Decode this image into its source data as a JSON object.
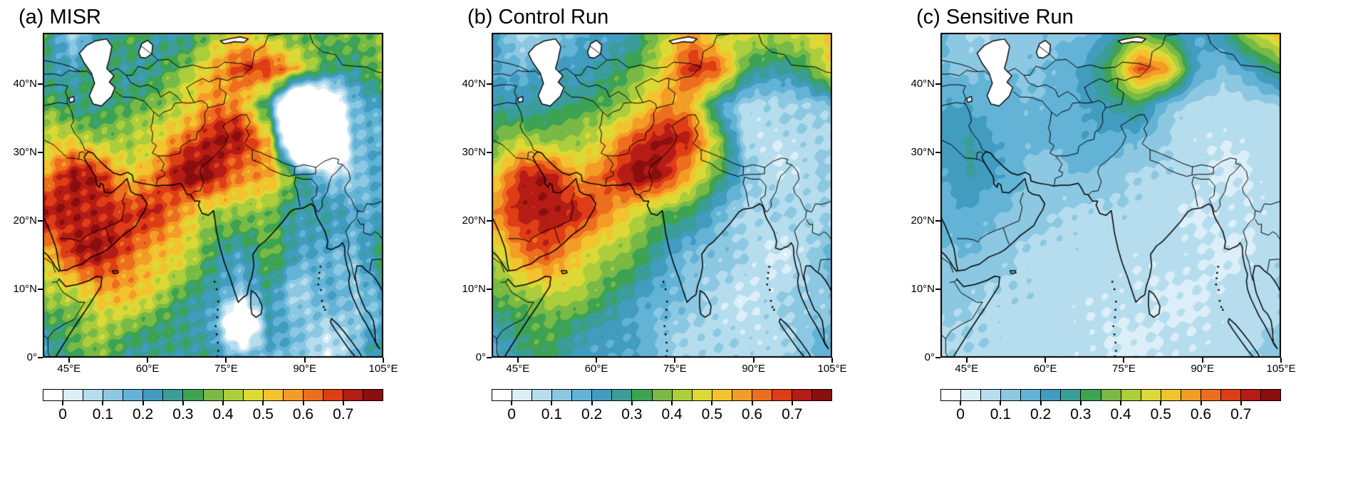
{
  "axes": {
    "lat_ticks": [
      {
        "label": "0°",
        "value": 0
      },
      {
        "label": "10°N",
        "value": 10
      },
      {
        "label": "20°N",
        "value": 20
      },
      {
        "label": "30°N",
        "value": 30
      },
      {
        "label": "40°N",
        "value": 40
      }
    ],
    "lon_ticks": [
      {
        "label": "45°E",
        "value": 45
      },
      {
        "label": "60°E",
        "value": 60
      },
      {
        "label": "75°E",
        "value": 75
      },
      {
        "label": "90°E",
        "value": 90
      },
      {
        "label": "105°E",
        "value": 105
      }
    ]
  },
  "colorbar": {
    "tick_labels": [
      "0",
      "0.1",
      "0.2",
      "0.3",
      "0.4",
      "0.5",
      "0.6",
      "0.7"
    ]
  },
  "chart_data": {
    "type": "heatmap",
    "description": "Three-panel filled-contour maps of aerosol optical depth over Africa, the Middle East and South Asia",
    "geo_extent": {
      "lon_min": 40,
      "lon_max": 105,
      "lat_min": 0,
      "lat_max": 47.5
    },
    "level_step": 0.05,
    "colorbar_tick_values": [
      0,
      0.1,
      0.2,
      0.3,
      0.4,
      0.5,
      0.6,
      0.7
    ],
    "missing_color": "#ffffff",
    "palette": [
      "#dceef7",
      "#b5ddee",
      "#8cc8e2",
      "#63b3d6",
      "#419cc0",
      "#3b9d98",
      "#3da353",
      "#78ba45",
      "#accd3c",
      "#dcd937",
      "#f3c32f",
      "#f39c26",
      "#ec6e1e",
      "#de3d15",
      "#b51c15",
      "#8b0e0f"
    ],
    "grid_lon": [
      42.5,
      47.5,
      52.5,
      57.5,
      62.5,
      67.5,
      72.5,
      77.5,
      82.5,
      87.5,
      92.5,
      97.5,
      102.5
    ],
    "grid_lat": [
      47.5,
      42.2,
      36.9,
      31.7,
      26.4,
      21.1,
      15.8,
      10.6,
      5.3,
      0
    ],
    "noise_amplitude": [
      0.05,
      0.03,
      0.012
    ],
    "panels": [
      {
        "title": "(a) MISR",
        "grid": [
          [
            0.3,
            0.12,
            0.25,
            0.3,
            0.25,
            0.3,
            0.4,
            0.45,
            0.42,
            0.38,
            0.3,
            0.35,
            0.45
          ],
          [
            0.3,
            0.2,
            0.3,
            0.3,
            0.3,
            0.35,
            0.55,
            0.72,
            0.68,
            0.5,
            0.35,
            0.3,
            0.35
          ],
          [
            0.35,
            0.3,
            0.3,
            0.32,
            0.38,
            0.48,
            0.6,
            0.55,
            0.25,
            -0.5,
            -0.2,
            0.15,
            0.25
          ],
          [
            0.45,
            0.5,
            0.42,
            0.4,
            0.48,
            0.65,
            0.75,
            0.74,
            0.55,
            -0.5,
            -0.5,
            0.15,
            0.2
          ],
          [
            0.6,
            0.74,
            0.7,
            0.55,
            0.62,
            0.75,
            0.76,
            0.62,
            0.55,
            0.3,
            0.15,
            0.12,
            0.18
          ],
          [
            0.7,
            0.76,
            0.75,
            0.65,
            0.7,
            0.6,
            0.4,
            0.35,
            0.4,
            0.28,
            0.22,
            0.18,
            0.25
          ],
          [
            0.55,
            0.7,
            0.74,
            0.7,
            0.55,
            0.45,
            0.32,
            0.28,
            0.35,
            0.2,
            0.22,
            0.18,
            0.28
          ],
          [
            0.4,
            0.5,
            0.6,
            0.55,
            0.48,
            0.38,
            0.25,
            0.15,
            0.3,
            0.1,
            0.18,
            0.12,
            0.25
          ],
          [
            0.3,
            0.35,
            0.45,
            0.4,
            0.33,
            0.28,
            0.2,
            -0.3,
            0.25,
            0.15,
            0.1,
            0.12,
            0.2
          ],
          [
            0.25,
            0.3,
            0.35,
            0.3,
            0.28,
            0.22,
            0.28,
            0.2,
            0.15,
            0.1,
            0.08,
            0.15,
            0.28
          ]
        ]
      },
      {
        "title": "(b) Control Run",
        "grid": [
          [
            0.2,
            0.1,
            0.12,
            0.15,
            0.2,
            0.28,
            0.42,
            0.55,
            0.45,
            0.5,
            0.4,
            0.45,
            0.55
          ],
          [
            0.22,
            0.15,
            0.2,
            0.25,
            0.28,
            0.32,
            0.48,
            0.74,
            0.65,
            0.3,
            0.28,
            0.32,
            0.48
          ],
          [
            0.25,
            0.25,
            0.28,
            0.3,
            0.35,
            0.45,
            0.58,
            0.55,
            0.22,
            0.08,
            0.08,
            0.1,
            0.15
          ],
          [
            0.35,
            0.45,
            0.4,
            0.4,
            0.5,
            0.68,
            0.76,
            0.7,
            0.42,
            0.08,
            0.05,
            0.08,
            0.1
          ],
          [
            0.5,
            0.7,
            0.74,
            0.58,
            0.65,
            0.76,
            0.75,
            0.55,
            0.32,
            0.12,
            0.08,
            0.08,
            0.1
          ],
          [
            0.55,
            0.75,
            0.76,
            0.7,
            0.6,
            0.5,
            0.35,
            0.28,
            0.18,
            0.1,
            0.08,
            0.08,
            0.12
          ],
          [
            0.45,
            0.6,
            0.66,
            0.55,
            0.45,
            0.35,
            0.25,
            0.18,
            0.12,
            0.08,
            0.06,
            0.08,
            0.14
          ],
          [
            0.35,
            0.45,
            0.5,
            0.45,
            0.35,
            0.28,
            0.18,
            0.12,
            0.1,
            0.06,
            0.06,
            0.1,
            0.15
          ],
          [
            0.25,
            0.32,
            0.36,
            0.3,
            0.25,
            0.2,
            0.14,
            0.1,
            0.08,
            0.06,
            0.08,
            0.12,
            0.15
          ],
          [
            0.2,
            0.26,
            0.3,
            0.25,
            0.2,
            0.18,
            0.14,
            0.1,
            0.08,
            0.06,
            0.1,
            0.14,
            0.18
          ]
        ]
      },
      {
        "title": "(c) Sensitive Run",
        "grid": [
          [
            0.15,
            0.1,
            0.1,
            0.12,
            0.14,
            0.15,
            0.22,
            0.35,
            0.28,
            0.2,
            0.25,
            0.45,
            0.55
          ],
          [
            0.16,
            0.12,
            0.14,
            0.15,
            0.16,
            0.2,
            0.35,
            0.68,
            0.58,
            0.2,
            0.15,
            0.22,
            0.32
          ],
          [
            0.2,
            0.2,
            0.18,
            0.15,
            0.16,
            0.2,
            0.26,
            0.3,
            0.14,
            0.08,
            0.06,
            0.08,
            0.1
          ],
          [
            0.22,
            0.26,
            0.2,
            0.16,
            0.16,
            0.2,
            0.18,
            0.15,
            0.1,
            0.06,
            0.05,
            0.06,
            0.08
          ],
          [
            0.2,
            0.25,
            0.2,
            0.15,
            0.12,
            0.14,
            0.12,
            0.1,
            0.09,
            0.06,
            0.05,
            0.05,
            0.08
          ],
          [
            0.16,
            0.2,
            0.16,
            0.12,
            0.1,
            0.1,
            0.09,
            0.08,
            0.07,
            0.05,
            0.05,
            0.05,
            0.08
          ],
          [
            0.15,
            0.15,
            0.12,
            0.1,
            0.09,
            0.08,
            0.08,
            0.07,
            0.06,
            0.05,
            0.05,
            0.05,
            0.08
          ],
          [
            0.12,
            0.12,
            0.1,
            0.09,
            0.08,
            0.07,
            0.06,
            0.05,
            0.05,
            0.05,
            0.05,
            0.08,
            0.1
          ],
          [
            0.1,
            0.1,
            0.09,
            0.08,
            0.07,
            0.06,
            0.05,
            0.05,
            0.05,
            0.05,
            0.06,
            0.08,
            0.1
          ],
          [
            0.1,
            0.09,
            0.08,
            0.08,
            0.06,
            0.05,
            0.05,
            0.05,
            0.05,
            0.05,
            0.08,
            0.1,
            0.12
          ]
        ]
      }
    ]
  }
}
